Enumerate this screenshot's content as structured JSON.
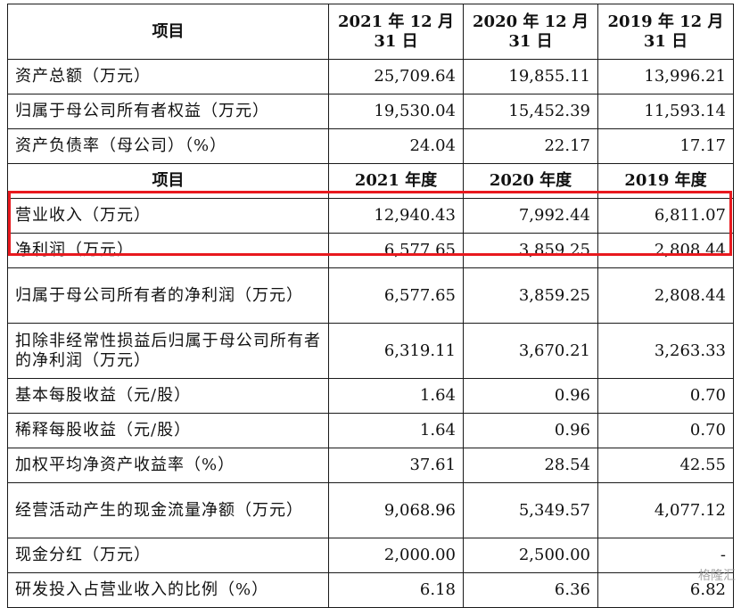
{
  "header1": {
    "item": "项目",
    "c2021": "2021 年 12 月 31 日",
    "c2020": "2020 年 12 月 31 日",
    "c2019": "2019 年 12 月 31 日"
  },
  "balance_rows": [
    {
      "label": "资产总额（万元）",
      "v2021": "25,709.64",
      "v2020": "19,855.11",
      "v2019": "13,996.21"
    },
    {
      "label": "归属于母公司所有者权益（万元）",
      "v2021": "19,530.04",
      "v2020": "15,452.39",
      "v2019": "11,593.14"
    },
    {
      "label": "资产负债率（母公司）（%）",
      "v2021": "24.04",
      "v2020": "22.17",
      "v2019": "17.17"
    }
  ],
  "header2": {
    "item": "项目",
    "c2021": "2021 年度",
    "c2020": "2020 年度",
    "c2019": "2019 年度"
  },
  "income_rows": [
    {
      "label": "营业收入（万元）",
      "v2021": "12,940.43",
      "v2020": "7,992.44",
      "v2019": "6,811.07"
    },
    {
      "label": "净利润（万元）",
      "v2021": "6,577.65",
      "v2020": "3,859.25",
      "v2019": "2,808.44"
    },
    {
      "label": "归属于母公司所有者的净利润（万元）",
      "v2021": "6,577.65",
      "v2020": "3,859.25",
      "v2019": "2,808.44"
    },
    {
      "label": "扣除非经常性损益后归属于母公司所有者的净利润（万元）",
      "v2021": "6,319.11",
      "v2020": "3,670.21",
      "v2019": "3,263.33"
    },
    {
      "label": "基本每股收益（元/股）",
      "v2021": "1.64",
      "v2020": "0.96",
      "v2019": "0.70"
    },
    {
      "label": "稀释每股收益（元/股）",
      "v2021": "1.64",
      "v2020": "0.96",
      "v2019": "0.70"
    },
    {
      "label": "加权平均净资产收益率（%）",
      "v2021": "37.61",
      "v2020": "28.54",
      "v2019": "42.55"
    },
    {
      "label": "经营活动产生的现金流量净额（万元）",
      "v2021": "9,068.96",
      "v2020": "5,349.57",
      "v2019": "4,077.12"
    },
    {
      "label": "现金分红（万元）",
      "v2021": "2,000.00",
      "v2020": "2,500.00",
      "v2019": "-"
    },
    {
      "label": "研发投入占营业收入的比例（%）",
      "v2021": "6.18",
      "v2020": "6.36",
      "v2019": "6.82"
    }
  ],
  "watermark": "格隆汇",
  "highlight_color": "#e8191e"
}
